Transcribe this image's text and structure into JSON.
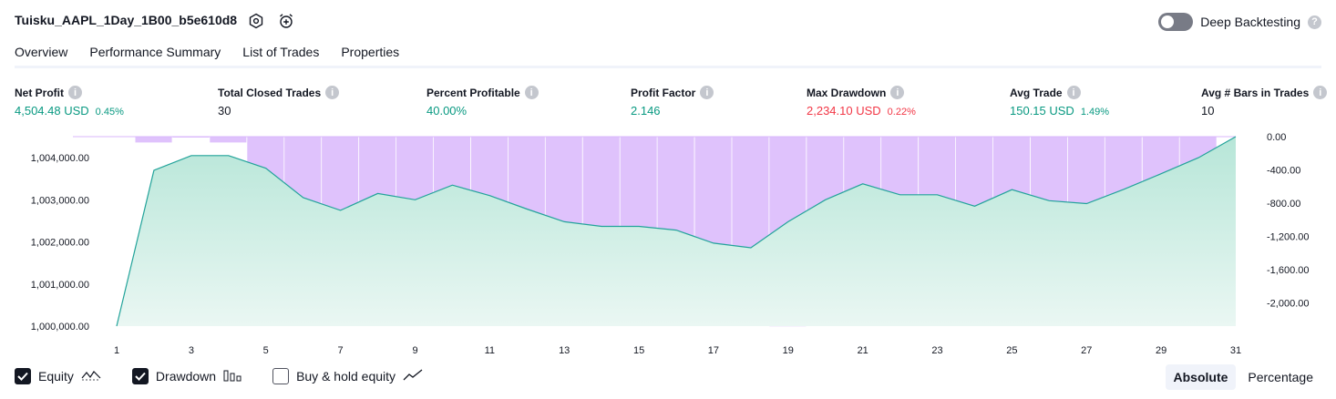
{
  "header": {
    "title": "Tuisku_AAPL_1Day_1B00_b5e610d8",
    "settings_icon": "hexagon-gear-icon",
    "alert_icon": "alarm-clock-add-icon",
    "deep_backtesting_label": "Deep Backtesting",
    "deep_backtesting_on": false,
    "help": "?"
  },
  "tabs": [
    {
      "label": "Overview",
      "active": true
    },
    {
      "label": "Performance Summary",
      "active": false
    },
    {
      "label": "List of Trades",
      "active": false
    },
    {
      "label": "Properties",
      "active": false
    }
  ],
  "metrics": {
    "net_profit": {
      "label": "Net Profit",
      "value": "4,504.48 USD",
      "pct": "0.45%"
    },
    "total_closed_trades": {
      "label": "Total Closed Trades",
      "value": "30"
    },
    "percent_profitable": {
      "label": "Percent Profitable",
      "value": "40.00%"
    },
    "profit_factor": {
      "label": "Profit Factor",
      "value": "2.146"
    },
    "max_drawdown": {
      "label": "Max Drawdown",
      "value": "2,234.10 USD",
      "pct": "0.22%"
    },
    "avg_trade": {
      "label": "Avg Trade",
      "value": "150.15 USD",
      "pct": "1.49%"
    },
    "avg_bars": {
      "label": "Avg # Bars in Trades",
      "value": "10"
    }
  },
  "colors": {
    "positive": "#089981",
    "negative": "#f23645",
    "equity_line": "#22a39a",
    "equity_fill": "#c9ece2",
    "drawdown_fill": "#d9b7fb"
  },
  "chart_data": {
    "type": "area",
    "x_ticks": [
      1,
      3,
      5,
      7,
      9,
      11,
      13,
      15,
      17,
      19,
      21,
      23,
      25,
      27,
      29,
      31
    ],
    "left_axis": {
      "ticks": [
        "1,000,000.00",
        "1,001,000.00",
        "1,002,000.00",
        "1,003,000.00",
        "1,004,000.00"
      ],
      "ylim": [
        1000000,
        1004500
      ]
    },
    "right_axis": {
      "ticks": [
        "0.00",
        "-400.00",
        "-800.00",
        "-1,200.00",
        "-1,600.00",
        "-2,000.00"
      ],
      "ylim": [
        -2300,
        0
      ]
    },
    "series": [
      {
        "name": "Equity",
        "x": [
          1,
          2,
          3,
          4,
          5,
          6,
          7,
          8,
          9,
          10,
          11,
          12,
          13,
          14,
          15,
          16,
          17,
          18,
          19,
          20,
          21,
          22,
          23,
          24,
          25,
          26,
          27,
          28,
          29,
          30,
          31
        ],
        "values": [
          1000000,
          1003700,
          1004050,
          1004050,
          1003750,
          1003050,
          1002750,
          1003150,
          1003000,
          1003350,
          1003100,
          1002780,
          1002480,
          1002370,
          1002370,
          1002280,
          1001970,
          1001860,
          1002480,
          1003000,
          1003380,
          1003120,
          1003120,
          1002850,
          1003240,
          1002980,
          1002910,
          1003250,
          1003620,
          1004000,
          1004500
        ]
      },
      {
        "name": "Drawdown",
        "x": [
          2,
          3,
          4,
          5,
          6,
          7,
          8,
          9,
          10,
          11,
          12,
          13,
          14,
          15,
          16,
          17,
          18,
          19,
          20,
          21,
          22,
          23,
          24,
          25,
          26,
          27,
          28,
          29,
          30
        ],
        "values": [
          -70,
          -10,
          -70,
          -550,
          -1130,
          -1700,
          -1390,
          -1090,
          -1220,
          -1340,
          -1300,
          -1630,
          -1760,
          -1770,
          -1840,
          -2140,
          -2240,
          -2280,
          -1650,
          -1300,
          -930,
          -990,
          -1300,
          -1300,
          -1120,
          -1290,
          -1400,
          -930,
          -400
        ]
      }
    ]
  },
  "legend": {
    "equity_label": "Equity",
    "equity_checked": true,
    "equity_icon": "equity-line-icon",
    "drawdown_label": "Drawdown",
    "drawdown_checked": true,
    "drawdown_icon": "drawdown-bars-icon",
    "buyhold_label": "Buy & hold equity",
    "buyhold_checked": false,
    "buyhold_icon": "trend-line-icon"
  },
  "scale_toggle": {
    "absolute_label": "Absolute",
    "percentage_label": "Percentage",
    "selected": "Absolute"
  }
}
